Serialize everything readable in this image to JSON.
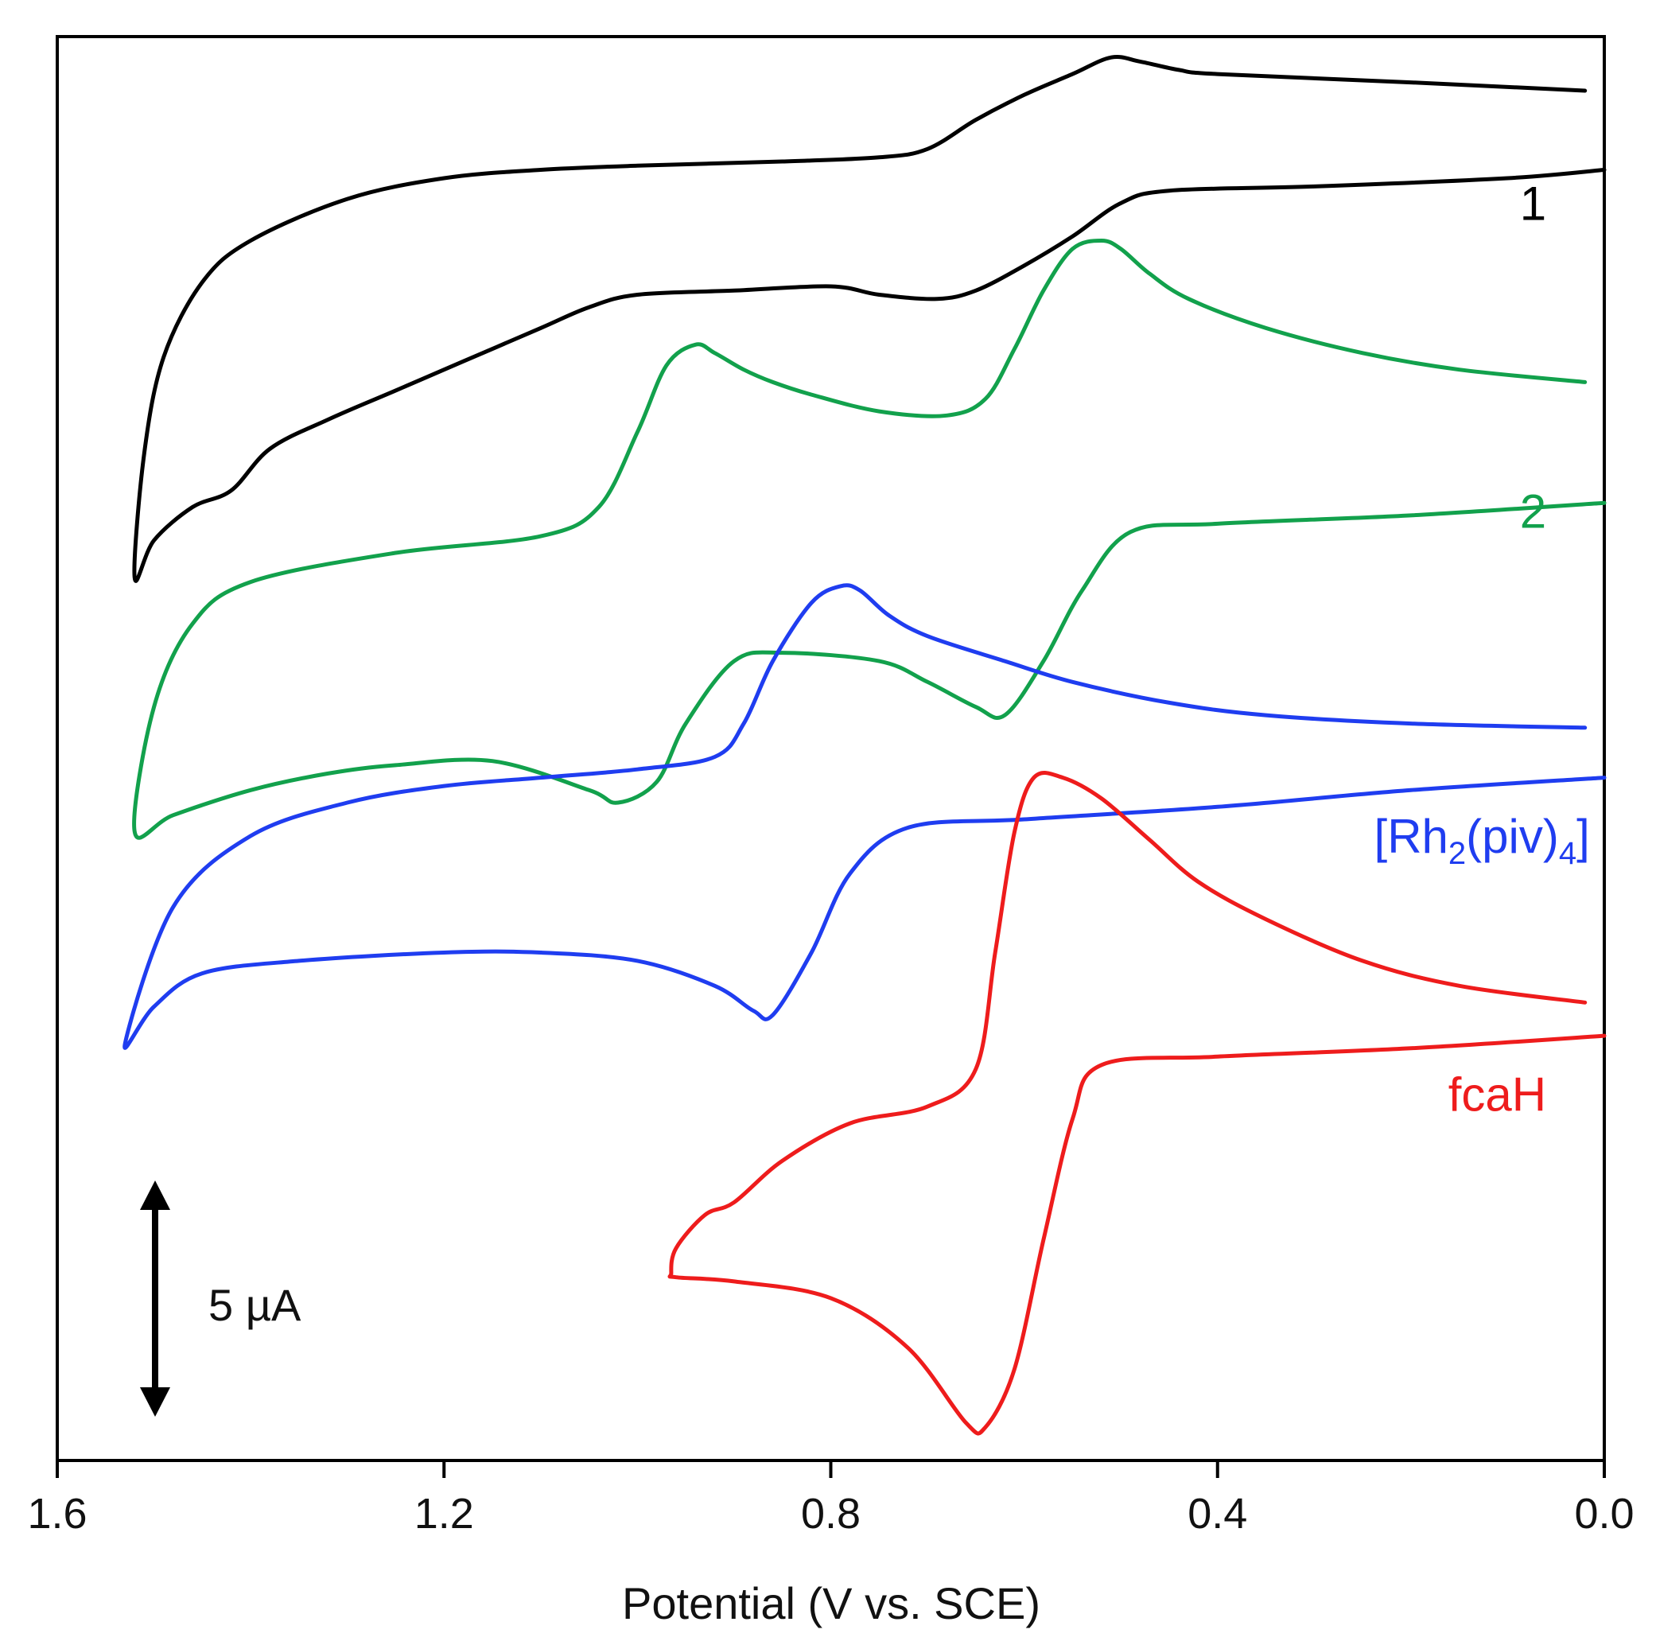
{
  "chart_data": {
    "type": "line",
    "title": "",
    "xlabel": "Potential (V vs. SCE)",
    "ylabel": "",
    "xlim": [
      1.6,
      0.0
    ],
    "xticks": [
      {
        "value": 1.6,
        "label": "1.6"
      },
      {
        "value": 1.2,
        "label": "1.2"
      },
      {
        "value": 0.8,
        "label": "0.8"
      },
      {
        "value": 0.4,
        "label": "0.4"
      },
      {
        "value": 0.0,
        "label": "0.0"
      }
    ],
    "y_units": "µA",
    "ylim": [
      -25.7,
      8.5
    ],
    "grid": false,
    "scale_bar": {
      "label": "5 µA",
      "value": 5
    },
    "series": [
      {
        "name": "1",
        "color": "#000000",
        "label": {
          "text": "1",
          "sub": "",
          "tail": ""
        },
        "label_anchor": {
          "x": 0.06,
          "y": 4.1
        },
        "points": [
          [
            0.02,
            7.2
          ],
          [
            0.2,
            7.4
          ],
          [
            0.4,
            7.6
          ],
          [
            0.44,
            7.7
          ],
          [
            0.48,
            7.9
          ],
          [
            0.51,
            8.0
          ],
          [
            0.55,
            7.6
          ],
          [
            0.6,
            7.1
          ],
          [
            0.65,
            6.5
          ],
          [
            0.7,
            5.8
          ],
          [
            0.75,
            5.6
          ],
          [
            0.85,
            5.5
          ],
          [
            1.0,
            5.4
          ],
          [
            1.1,
            5.3
          ],
          [
            1.2,
            5.1
          ],
          [
            1.3,
            4.6
          ],
          [
            1.4,
            3.6
          ],
          [
            1.45,
            2.6
          ],
          [
            1.49,
            0.8
          ],
          [
            1.51,
            -1.5
          ],
          [
            1.52,
            -4.5
          ],
          [
            1.5,
            -3.6
          ],
          [
            1.46,
            -2.8
          ],
          [
            1.42,
            -2.4
          ],
          [
            1.38,
            -1.4
          ],
          [
            1.32,
            -0.7
          ],
          [
            1.25,
            0.0
          ],
          [
            1.18,
            0.7
          ],
          [
            1.1,
            1.5
          ],
          [
            1.05,
            2.0
          ],
          [
            1.0,
            2.3
          ],
          [
            0.9,
            2.4
          ],
          [
            0.8,
            2.5
          ],
          [
            0.75,
            2.3
          ],
          [
            0.69,
            2.2
          ],
          [
            0.65,
            2.4
          ],
          [
            0.6,
            3.0
          ],
          [
            0.55,
            3.7
          ],
          [
            0.5,
            4.5
          ],
          [
            0.45,
            4.8
          ],
          [
            0.3,
            4.9
          ],
          [
            0.1,
            5.1
          ],
          [
            0.0,
            5.3
          ]
        ]
      },
      {
        "name": "2",
        "color": "#12a14c",
        "label": {
          "text": "2",
          "sub": "",
          "tail": ""
        },
        "label_anchor": {
          "x": 0.06,
          "y": -3.3
        },
        "points": [
          [
            0.02,
            0.2
          ],
          [
            0.15,
            0.5
          ],
          [
            0.25,
            0.9
          ],
          [
            0.35,
            1.5
          ],
          [
            0.43,
            2.2
          ],
          [
            0.47,
            2.8
          ],
          [
            0.5,
            3.4
          ],
          [
            0.52,
            3.6
          ],
          [
            0.55,
            3.4
          ],
          [
            0.58,
            2.4
          ],
          [
            0.61,
            1.0
          ],
          [
            0.64,
            -0.2
          ],
          [
            0.68,
            -0.6
          ],
          [
            0.75,
            -0.5
          ],
          [
            0.82,
            -0.1
          ],
          [
            0.86,
            0.2
          ],
          [
            0.89,
            0.5
          ],
          [
            0.92,
            0.9
          ],
          [
            0.94,
            1.1
          ],
          [
            0.97,
            0.6
          ],
          [
            1.0,
            -1.0
          ],
          [
            1.04,
            -2.8
          ],
          [
            1.1,
            -3.5
          ],
          [
            1.25,
            -3.9
          ],
          [
            1.4,
            -4.6
          ],
          [
            1.46,
            -5.6
          ],
          [
            1.5,
            -7.6
          ],
          [
            1.52,
            -10.6
          ],
          [
            1.48,
            -10.2
          ],
          [
            1.4,
            -9.6
          ],
          [
            1.32,
            -9.2
          ],
          [
            1.25,
            -9.0
          ],
          [
            1.15,
            -8.9
          ],
          [
            1.05,
            -9.6
          ],
          [
            1.02,
            -9.9
          ],
          [
            0.98,
            -9.4
          ],
          [
            0.95,
            -8.0
          ],
          [
            0.9,
            -6.5
          ],
          [
            0.85,
            -6.3
          ],
          [
            0.75,
            -6.5
          ],
          [
            0.7,
            -7.0
          ],
          [
            0.65,
            -7.6
          ],
          [
            0.62,
            -7.8
          ],
          [
            0.58,
            -6.5
          ],
          [
            0.54,
            -4.8
          ],
          [
            0.49,
            -3.4
          ],
          [
            0.4,
            -3.2
          ],
          [
            0.2,
            -3.0
          ],
          [
            0.0,
            -2.7
          ]
        ]
      },
      {
        "name": "[Rh2(piv)4]",
        "color": "#1f3df0",
        "label": {
          "text": "[Rh",
          "sub": "2",
          "tail": "(piv)",
          "sub2": "4",
          "tail2": "]"
        },
        "label_anchor": {
          "x": 0.015,
          "y": -11.1
        },
        "points": [
          [
            0.02,
            -8.1
          ],
          [
            0.2,
            -8.0
          ],
          [
            0.35,
            -7.8
          ],
          [
            0.45,
            -7.5
          ],
          [
            0.55,
            -7.0
          ],
          [
            0.62,
            -6.5
          ],
          [
            0.7,
            -5.9
          ],
          [
            0.74,
            -5.4
          ],
          [
            0.77,
            -4.8
          ],
          [
            0.79,
            -4.7
          ],
          [
            0.82,
            -5.1
          ],
          [
            0.86,
            -6.5
          ],
          [
            0.89,
            -8.0
          ],
          [
            0.92,
            -8.8
          ],
          [
            1.0,
            -9.1
          ],
          [
            1.1,
            -9.3
          ],
          [
            1.2,
            -9.5
          ],
          [
            1.3,
            -9.9
          ],
          [
            1.4,
            -10.7
          ],
          [
            1.48,
            -12.4
          ],
          [
            1.53,
            -15.7
          ],
          [
            1.5,
            -14.8
          ],
          [
            1.45,
            -14.0
          ],
          [
            1.35,
            -13.7
          ],
          [
            1.2,
            -13.5
          ],
          [
            1.1,
            -13.5
          ],
          [
            1.0,
            -13.7
          ],
          [
            0.92,
            -14.3
          ],
          [
            0.88,
            -14.9
          ],
          [
            0.86,
            -15.0
          ],
          [
            0.82,
            -13.5
          ],
          [
            0.78,
            -11.6
          ],
          [
            0.72,
            -10.5
          ],
          [
            0.6,
            -10.3
          ],
          [
            0.4,
            -10.0
          ],
          [
            0.2,
            -9.6
          ],
          [
            0.0,
            -9.3
          ]
        ]
      },
      {
        "name": "fcaH",
        "color": "#ee1c1c",
        "label": {
          "text": "fcaH",
          "sub": "",
          "tail": ""
        },
        "label_anchor": {
          "x": 0.06,
          "y": -17.3
        },
        "points": [
          [
            0.02,
            -14.7
          ],
          [
            0.15,
            -14.3
          ],
          [
            0.25,
            -13.7
          ],
          [
            0.35,
            -12.7
          ],
          [
            0.42,
            -11.8
          ],
          [
            0.47,
            -10.8
          ],
          [
            0.52,
            -9.8
          ],
          [
            0.56,
            -9.3
          ],
          [
            0.59,
            -9.3
          ],
          [
            0.61,
            -10.6
          ],
          [
            0.63,
            -13.5
          ],
          [
            0.65,
            -16.3
          ],
          [
            0.7,
            -17.2
          ],
          [
            0.78,
            -17.6
          ],
          [
            0.85,
            -18.5
          ],
          [
            0.9,
            -19.5
          ],
          [
            0.93,
            -19.8
          ],
          [
            0.96,
            -20.6
          ],
          [
            0.965,
            -21.2
          ],
          [
            0.96,
            -21.3
          ],
          [
            0.9,
            -21.4
          ],
          [
            0.8,
            -21.8
          ],
          [
            0.72,
            -23.0
          ],
          [
            0.66,
            -24.8
          ],
          [
            0.64,
            -24.9
          ],
          [
            0.61,
            -23.5
          ],
          [
            0.58,
            -20.4
          ],
          [
            0.55,
            -17.5
          ],
          [
            0.52,
            -16.2
          ],
          [
            0.4,
            -16.0
          ],
          [
            0.2,
            -15.8
          ],
          [
            0.0,
            -15.5
          ]
        ]
      }
    ]
  }
}
